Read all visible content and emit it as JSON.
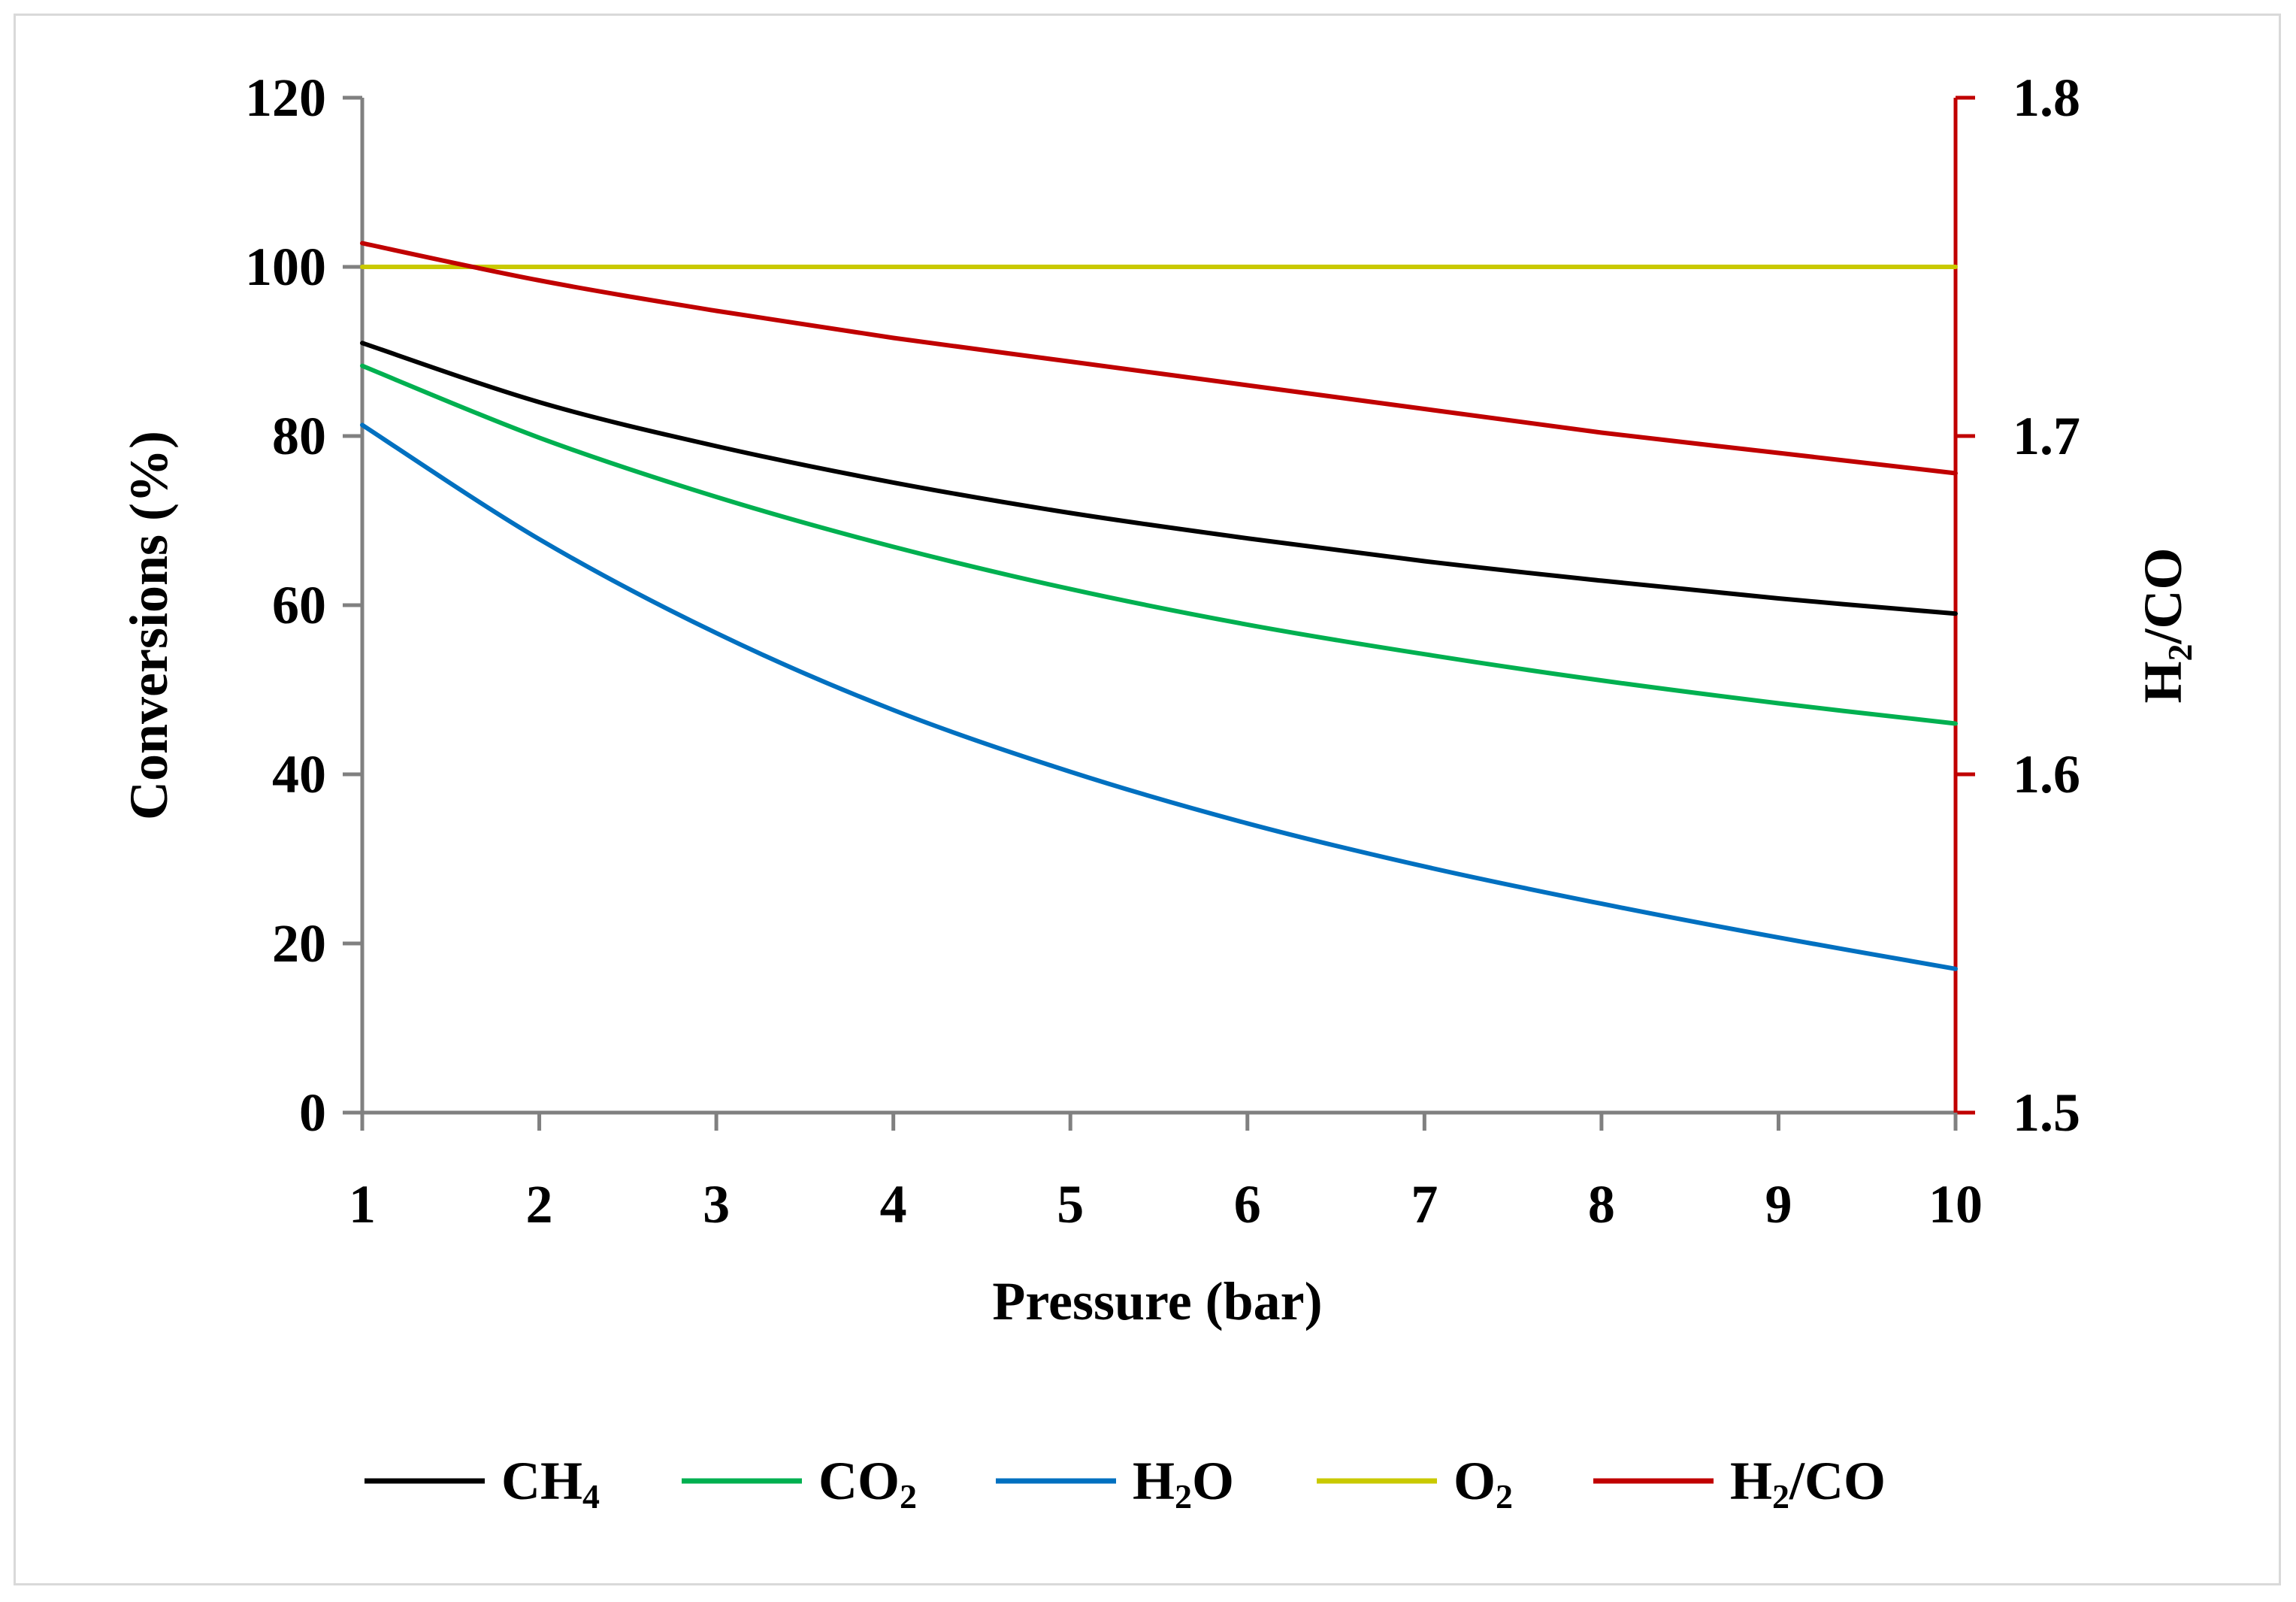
{
  "chart_data": {
    "type": "line",
    "title": "",
    "xlabel": "Pressure (bar)",
    "ylabel": "Conversions (%)",
    "y2label": {
      "main": "H",
      "sub": "2",
      "tail": "/CO"
    },
    "xlim": [
      1,
      10
    ],
    "ylim": [
      0,
      120
    ],
    "y2lim": [
      1.5,
      1.8
    ],
    "x": [
      1,
      2,
      3,
      4,
      5,
      6,
      7,
      8,
      9,
      10
    ],
    "x_ticks": [
      "1",
      "2",
      "3",
      "4",
      "5",
      "6",
      "7",
      "8",
      "9",
      "10"
    ],
    "y_ticks": [
      "0",
      "20",
      "40",
      "60",
      "80",
      "100",
      "120"
    ],
    "y2_ticks": [
      "1.5",
      "1.6",
      "1.7",
      "1.8"
    ],
    "grid": false,
    "legend_position": "bottom",
    "series": [
      {
        "name": "CH4",
        "label_main": "CH",
        "label_sub": "4",
        "label_tail": "",
        "color": "#000000",
        "axis": "left",
        "values": [
          91.0,
          84.0,
          78.8,
          74.5,
          70.9,
          67.9,
          65.2,
          62.9,
          60.8,
          59.0
        ]
      },
      {
        "name": "CO2",
        "label_main": "CO",
        "label_sub": "2",
        "label_tail": "",
        "color": "#00b050",
        "axis": "left",
        "values": [
          88.3,
          79.8,
          72.8,
          66.9,
          61.9,
          57.7,
          54.2,
          51.1,
          48.4,
          46.0
        ]
      },
      {
        "name": "H2O",
        "label_main": "H",
        "label_sub": "2",
        "label_tail": "O",
        "color": "#0070c0",
        "axis": "left",
        "values": [
          81.3,
          67.8,
          56.7,
          47.6,
          40.3,
          34.2,
          29.1,
          24.7,
          20.7,
          17.0
        ]
      },
      {
        "name": "O2",
        "label_main": "O",
        "label_sub": "2",
        "label_tail": "",
        "color": "#c9c900",
        "axis": "left",
        "values": [
          100,
          100,
          100,
          100,
          100,
          100,
          100,
          100,
          100,
          100
        ]
      },
      {
        "name": "H2/CO",
        "label_main": "H",
        "label_sub": "2",
        "label_tail": "/CO",
        "color": "#c00000",
        "axis": "right",
        "values": [
          1.757,
          1.746,
          1.737,
          1.729,
          1.722,
          1.715,
          1.708,
          1.701,
          1.695,
          1.689
        ]
      }
    ]
  }
}
